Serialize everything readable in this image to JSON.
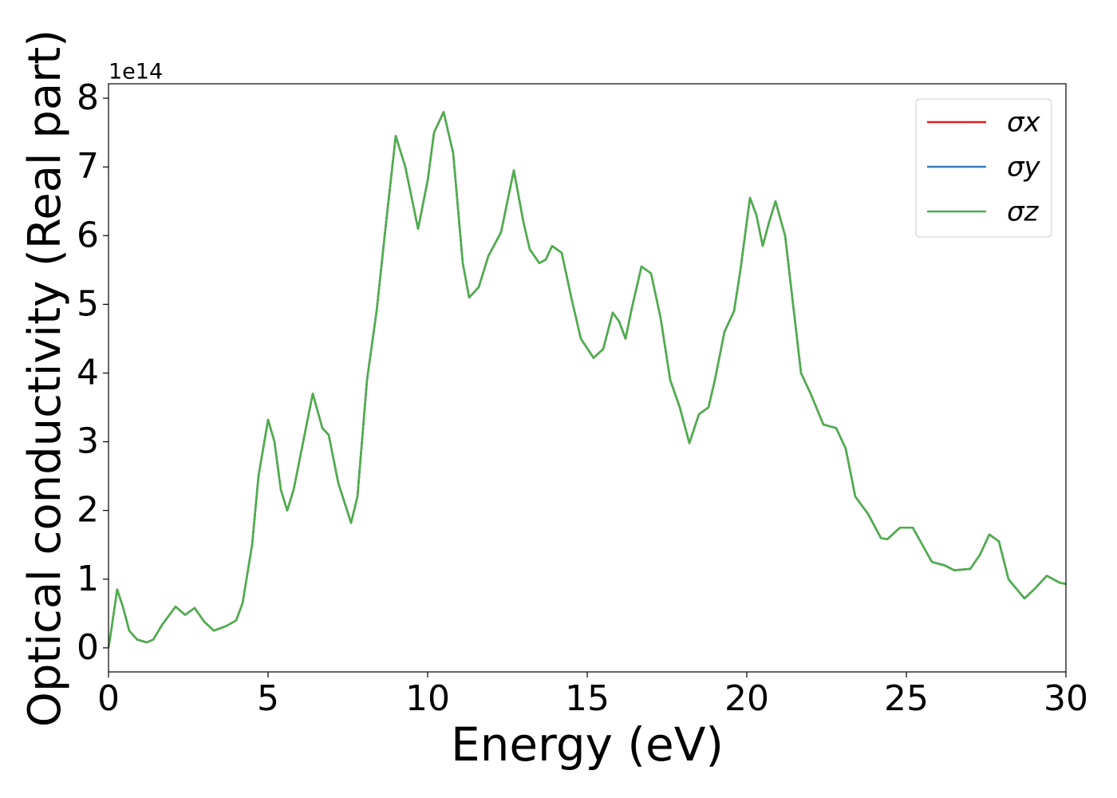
{
  "chart_data": {
    "type": "line",
    "ylabel": "Optical conductivity (Real part)",
    "xlabel": "Energy (eV)",
    "y_offset_label": "1e14",
    "xlim": [
      0,
      30
    ],
    "xticks": [
      0,
      5,
      10,
      15,
      20,
      25,
      30
    ],
    "ylim": [
      -0.35,
      8.21
    ],
    "yticks": [
      0,
      1,
      2,
      3,
      4,
      5,
      6,
      7,
      8
    ],
    "grid": false,
    "legend": "upper right",
    "x": [
      0,
      0.1,
      0.27,
      0.45,
      0.65,
      0.9,
      1.2,
      1.4,
      1.7,
      2.1,
      2.4,
      2.7,
      3.0,
      3.3,
      3.7,
      4.0,
      4.2,
      4.5,
      4.7,
      5.0,
      5.2,
      5.4,
      5.6,
      5.8,
      6.1,
      6.4,
      6.7,
      6.9,
      7.2,
      7.6,
      7.8,
      8.1,
      8.4,
      8.7,
      9.0,
      9.3,
      9.7,
      10.0,
      10.2,
      10.5,
      10.8,
      11.1,
      11.3,
      11.6,
      11.9,
      12.3,
      12.7,
      13.0,
      13.2,
      13.5,
      13.7,
      13.9,
      14.2,
      14.5,
      14.8,
      15.2,
      15.5,
      15.8,
      16.0,
      16.2,
      16.4,
      16.7,
      17.0,
      17.3,
      17.6,
      17.9,
      18.2,
      18.5,
      18.8,
      19.0,
      19.3,
      19.6,
      19.8,
      20.1,
      20.3,
      20.5,
      20.7,
      20.9,
      21.2,
      21.4,
      21.7,
      22.0,
      22.4,
      22.8,
      23.1,
      23.4,
      23.8,
      24.2,
      24.4,
      24.8,
      25.2,
      25.5,
      25.8,
      26.2,
      26.5,
      27.0,
      27.3,
      27.6,
      27.9,
      28.2,
      28.7,
      29.0,
      29.4,
      29.8,
      30.0
    ],
    "series": [
      {
        "name": "σx",
        "color": "#e41a1c",
        "values": [
          0.0,
          0.3,
          0.85,
          0.6,
          0.25,
          0.12,
          0.08,
          0.12,
          0.35,
          0.6,
          0.48,
          0.58,
          0.38,
          0.25,
          0.32,
          0.4,
          0.65,
          1.5,
          2.5,
          3.32,
          3.0,
          2.3,
          2.0,
          2.3,
          3.0,
          3.7,
          3.2,
          3.1,
          2.4,
          1.82,
          2.2,
          3.9,
          4.9,
          6.2,
          7.45,
          7.0,
          6.1,
          6.8,
          7.5,
          7.8,
          7.2,
          5.6,
          5.1,
          5.25,
          5.7,
          6.05,
          6.95,
          6.2,
          5.8,
          5.6,
          5.65,
          5.85,
          5.75,
          5.1,
          4.5,
          4.22,
          4.35,
          4.88,
          4.75,
          4.5,
          4.95,
          5.55,
          5.45,
          4.8,
          3.9,
          3.5,
          2.98,
          3.4,
          3.5,
          3.9,
          4.6,
          4.9,
          5.5,
          6.55,
          6.3,
          5.85,
          6.2,
          6.5,
          6.0,
          5.2,
          4.0,
          3.7,
          3.25,
          3.2,
          2.9,
          2.2,
          1.95,
          1.6,
          1.58,
          1.75,
          1.75,
          1.5,
          1.25,
          1.2,
          1.13,
          1.15,
          1.35,
          1.65,
          1.55,
          1.0,
          0.72,
          0.85,
          1.05,
          0.95,
          0.93
        ]
      },
      {
        "name": "σy",
        "color": "#377eb8",
        "values": [
          0.0,
          0.3,
          0.85,
          0.6,
          0.25,
          0.12,
          0.08,
          0.12,
          0.35,
          0.6,
          0.48,
          0.58,
          0.38,
          0.25,
          0.32,
          0.4,
          0.65,
          1.5,
          2.5,
          3.32,
          3.0,
          2.3,
          2.0,
          2.3,
          3.0,
          3.7,
          3.2,
          3.1,
          2.4,
          1.82,
          2.2,
          3.9,
          4.9,
          6.2,
          7.45,
          7.0,
          6.1,
          6.8,
          7.5,
          7.8,
          7.2,
          5.6,
          5.1,
          5.25,
          5.7,
          6.05,
          6.95,
          6.2,
          5.8,
          5.6,
          5.65,
          5.85,
          5.75,
          5.1,
          4.5,
          4.22,
          4.35,
          4.88,
          4.75,
          4.5,
          4.95,
          5.55,
          5.45,
          4.8,
          3.9,
          3.5,
          2.98,
          3.4,
          3.5,
          3.9,
          4.6,
          4.9,
          5.5,
          6.55,
          6.3,
          5.85,
          6.2,
          6.5,
          6.0,
          5.2,
          4.0,
          3.7,
          3.25,
          3.2,
          2.9,
          2.2,
          1.95,
          1.6,
          1.58,
          1.75,
          1.75,
          1.5,
          1.25,
          1.2,
          1.13,
          1.15,
          1.35,
          1.65,
          1.55,
          1.0,
          0.72,
          0.85,
          1.05,
          0.95,
          0.93
        ]
      },
      {
        "name": "σz",
        "color": "#4daf4a",
        "values": [
          0.0,
          0.3,
          0.85,
          0.6,
          0.25,
          0.12,
          0.08,
          0.12,
          0.35,
          0.6,
          0.48,
          0.58,
          0.38,
          0.25,
          0.32,
          0.4,
          0.65,
          1.5,
          2.5,
          3.32,
          3.0,
          2.3,
          2.0,
          2.3,
          3.0,
          3.7,
          3.2,
          3.1,
          2.4,
          1.82,
          2.2,
          3.9,
          4.9,
          6.2,
          7.45,
          7.0,
          6.1,
          6.8,
          7.5,
          7.8,
          7.2,
          5.6,
          5.1,
          5.25,
          5.7,
          6.05,
          6.95,
          6.2,
          5.8,
          5.6,
          5.65,
          5.85,
          5.75,
          5.1,
          4.5,
          4.22,
          4.35,
          4.88,
          4.75,
          4.5,
          4.95,
          5.55,
          5.45,
          4.8,
          3.9,
          3.5,
          2.98,
          3.4,
          3.5,
          3.9,
          4.6,
          4.9,
          5.5,
          6.55,
          6.3,
          5.85,
          6.2,
          6.5,
          6.0,
          5.2,
          4.0,
          3.7,
          3.25,
          3.2,
          2.9,
          2.2,
          1.95,
          1.6,
          1.58,
          1.75,
          1.75,
          1.5,
          1.25,
          1.2,
          1.13,
          1.15,
          1.35,
          1.65,
          1.55,
          1.0,
          0.72,
          0.85,
          1.05,
          0.95,
          0.93
        ]
      }
    ]
  }
}
